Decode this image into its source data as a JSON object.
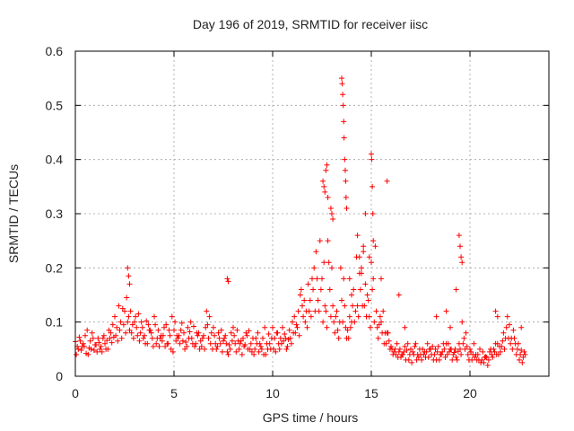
{
  "chart_data": {
    "type": "scatter",
    "title": "Day 196 of 2019, SRMTID for receiver iisc",
    "xlabel": "GPS time / hours",
    "ylabel": "SRMTID / TECUs",
    "xlim": [
      0,
      24
    ],
    "ylim": [
      0,
      0.6
    ],
    "xticks": [
      0,
      5,
      10,
      15,
      20
    ],
    "xtick_labels": [
      "0",
      "5",
      "10",
      "15",
      "20"
    ],
    "yticks": [
      0,
      0.1,
      0.2,
      0.3,
      0.4,
      0.5,
      0.6
    ],
    "ytick_labels": [
      "0",
      "0.1",
      "0.2",
      "0.3",
      "0.4",
      "0.5",
      "0.6"
    ],
    "grid": true,
    "legend": "none",
    "marker": "plus",
    "series": [
      {
        "name": "SRMTID",
        "color": "#ff0000",
        "x": [
          0.0,
          0.2,
          0.4,
          0.6,
          0.8,
          1.0,
          1.2,
          1.4,
          1.6,
          1.8,
          2.0,
          2.2,
          2.4,
          2.6,
          2.8,
          3.0,
          3.2,
          3.4,
          3.6,
          3.8,
          4.0,
          4.2,
          4.4,
          4.6,
          4.8,
          5.0,
          5.2,
          5.4,
          5.6,
          5.8,
          6.0,
          6.2,
          6.4,
          6.6,
          6.8,
          7.0,
          7.2,
          7.4,
          7.6,
          7.8,
          8.0,
          8.2,
          8.4,
          8.6,
          8.8,
          9.0,
          9.2,
          9.4,
          9.6,
          9.8,
          10.0,
          10.2,
          10.4,
          10.6,
          10.8,
          11.0,
          11.2,
          11.4,
          11.6,
          11.8,
          12.0,
          12.2,
          12.4,
          12.6,
          12.8,
          13.0,
          13.2,
          13.4,
          13.6,
          13.8,
          14.0,
          14.2,
          14.4,
          14.6,
          14.8,
          15.0,
          15.2,
          15.4,
          15.6,
          15.8,
          16.0,
          16.2,
          16.4,
          16.6,
          16.8,
          17.0,
          17.2,
          17.4,
          17.6,
          17.8,
          18.0,
          18.2,
          18.4,
          18.6,
          18.8,
          19.0,
          19.2,
          19.4,
          19.6,
          19.8,
          20.0,
          20.2,
          20.4,
          20.6,
          20.8,
          21.0,
          21.2,
          21.4,
          21.6,
          21.8,
          22.0,
          22.2,
          22.4,
          22.6,
          22.8,
          0.1,
          0.3,
          0.5,
          0.7,
          0.9,
          1.1,
          1.3,
          1.5,
          1.7,
          1.9,
          2.1,
          2.3,
          2.5,
          2.7,
          2.9,
          3.1,
          3.3,
          3.5,
          3.7,
          3.9,
          4.1,
          4.3,
          4.5,
          4.7,
          4.9,
          5.1,
          5.3,
          5.5,
          5.7,
          5.9,
          6.1,
          6.3,
          6.5,
          6.7,
          6.9,
          7.1,
          7.3,
          7.5,
          7.7,
          7.9,
          8.1,
          8.3,
          8.5,
          8.7,
          8.9,
          9.1,
          9.3,
          9.5,
          9.7,
          9.9,
          10.1,
          10.3,
          10.5,
          10.7,
          10.9,
          11.1,
          11.3,
          11.5,
          11.7,
          11.9,
          12.1,
          12.3,
          12.5,
          12.7,
          12.9,
          13.1,
          13.3,
          13.5,
          13.7,
          13.9,
          14.1,
          14.3,
          14.5,
          14.7,
          14.9,
          15.1,
          15.3,
          15.5,
          15.7,
          15.9,
          16.1,
          16.3,
          16.5,
          16.7,
          16.9,
          17.1,
          17.3,
          17.5,
          17.7,
          17.9,
          18.1,
          18.3,
          18.5,
          18.7,
          18.9,
          19.1,
          19.3,
          19.5,
          19.7,
          19.9,
          20.1,
          20.3,
          20.5,
          20.7,
          20.9,
          21.1,
          21.3,
          21.5,
          21.7,
          21.9,
          22.1,
          22.3,
          22.5,
          22.7,
          0.05,
          0.25,
          0.45,
          0.65,
          0.85,
          1.05,
          1.25,
          1.45,
          1.65,
          1.85,
          2.05,
          2.25,
          2.45,
          2.65,
          2.85,
          3.05,
          3.25,
          3.45,
          3.65,
          3.85,
          4.05,
          4.25,
          4.45,
          4.65,
          4.85,
          5.05,
          5.25,
          5.45,
          5.65,
          5.85,
          6.05,
          6.25,
          6.45,
          6.65,
          6.85,
          7.05,
          7.25,
          7.45,
          7.65,
          7.85,
          8.05,
          8.25,
          8.45,
          8.65,
          8.85,
          9.05,
          9.25,
          9.45,
          9.65,
          9.85,
          10.05,
          10.25,
          10.45,
          10.65,
          10.85,
          11.05,
          11.25,
          11.45,
          11.65,
          11.85,
          12.05,
          12.25,
          12.45,
          12.65,
          12.85,
          13.05,
          13.25,
          13.45,
          13.65,
          13.85,
          14.05,
          14.25,
          14.45,
          14.65,
          14.85,
          15.05,
          15.25,
          15.45,
          15.65,
          15.85,
          16.05,
          16.25,
          16.45,
          16.65,
          16.85,
          17.05,
          17.25,
          17.45,
          17.65,
          17.85,
          18.05,
          18.25,
          18.45,
          18.65,
          18.85,
          19.05,
          19.25,
          19.45,
          19.65,
          19.85,
          20.05,
          20.25,
          20.45,
          20.65,
          20.85,
          21.05,
          21.25,
          21.45,
          21.65,
          21.85,
          22.05,
          22.25,
          22.45,
          22.65,
          0.15,
          0.35,
          0.55,
          0.75,
          0.95,
          1.15,
          1.35,
          1.55,
          1.75,
          1.95,
          2.15,
          2.35,
          2.55,
          2.75,
          2.95,
          3.15,
          3.35,
          3.55,
          3.75,
          3.95,
          4.15,
          4.35,
          4.55,
          4.75,
          4.95,
          5.15,
          5.35,
          5.55,
          5.75,
          5.95,
          6.15,
          6.35,
          6.55,
          6.75,
          6.95,
          7.15,
          7.35,
          7.55,
          7.75,
          7.95,
          8.15,
          8.35,
          8.55,
          8.75,
          8.95,
          9.15,
          9.35,
          9.55,
          9.75,
          9.95,
          10.15,
          10.35,
          10.55,
          10.75,
          10.95,
          11.15,
          11.35,
          11.55,
          11.75,
          11.95,
          12.15,
          12.35,
          12.55,
          12.75,
          12.95,
          13.15,
          13.35,
          13.55,
          13.75,
          13.95,
          14.15,
          14.35,
          14.55,
          14.75,
          14.95,
          15.15,
          15.35,
          15.55,
          15.75,
          15.95,
          16.15,
          16.35,
          16.55,
          16.75,
          16.95,
          17.15,
          17.35,
          17.55,
          17.75,
          17.95,
          18.15,
          18.35,
          18.55,
          18.75,
          18.95,
          19.15,
          19.35,
          19.55,
          19.75,
          19.95,
          20.15,
          20.35,
          20.55,
          20.75,
          20.95,
          21.15,
          21.35,
          21.55,
          21.75,
          21.95,
          22.15,
          22.35,
          22.55,
          22.75,
          2.65,
          2.7,
          2.75,
          7.7,
          7.75,
          12.55,
          12.6,
          12.65,
          12.7,
          12.75,
          12.8,
          12.95,
          13.0,
          13.05,
          13.5,
          13.52,
          13.55,
          13.58,
          13.6,
          13.62,
          13.65,
          13.68,
          13.7,
          13.72,
          13.75,
          13.9,
          14.0,
          14.3,
          14.4,
          14.5,
          14.6,
          14.7,
          14.9,
          15.0,
          15.02,
          15.05,
          15.08,
          15.1,
          15.5,
          15.8,
          16.4,
          16.7,
          18.3,
          18.8,
          19.0,
          19.3,
          19.45,
          19.5,
          19.55,
          19.6,
          21.3,
          21.4,
          22.6
        ],
        "y": [
          0.064,
          0.072,
          0.06,
          0.085,
          0.05,
          0.058,
          0.062,
          0.07,
          0.066,
          0.08,
          0.11,
          0.13,
          0.125,
          0.145,
          0.12,
          0.1,
          0.115,
          0.09,
          0.102,
          0.085,
          0.11,
          0.085,
          0.065,
          0.095,
          0.075,
          0.085,
          0.07,
          0.098,
          0.063,
          0.082,
          0.092,
          0.075,
          0.055,
          0.09,
          0.11,
          0.09,
          0.055,
          0.085,
          0.075,
          0.058,
          0.09,
          0.085,
          0.065,
          0.058,
          0.084,
          0.07,
          0.06,
          0.055,
          0.09,
          0.078,
          0.09,
          0.08,
          0.07,
          0.078,
          0.068,
          0.1,
          0.095,
          0.15,
          0.14,
          0.17,
          0.18,
          0.23,
          0.25,
          0.21,
          0.25,
          0.2,
          0.11,
          0.1,
          0.18,
          0.085,
          0.15,
          0.12,
          0.19,
          0.23,
          0.15,
          0.21,
          0.24,
          0.095,
          0.12,
          0.08,
          0.055,
          0.05,
          0.045,
          0.04,
          0.048,
          0.05,
          0.055,
          0.035,
          0.05,
          0.045,
          0.05,
          0.04,
          0.055,
          0.045,
          0.06,
          0.05,
          0.044,
          0.046,
          0.1,
          0.08,
          0.05,
          0.06,
          0.04,
          0.03,
          0.036,
          0.045,
          0.05,
          0.06,
          0.055,
          0.07,
          0.095,
          0.085,
          0.05,
          0.048,
          0.04,
          0.055,
          0.048,
          0.075,
          0.052,
          0.07,
          0.045,
          0.055,
          0.06,
          0.085,
          0.095,
          0.09,
          0.1,
          0.12,
          0.11,
          0.095,
          0.09,
          0.08,
          0.075,
          0.095,
          0.07,
          0.06,
          0.07,
          0.09,
          0.06,
          0.11,
          0.065,
          0.06,
          0.08,
          0.09,
          0.07,
          0.06,
          0.05,
          0.075,
          0.095,
          0.08,
          0.06,
          0.07,
          0.065,
          0.045,
          0.08,
          0.06,
          0.05,
          0.07,
          0.075,
          0.06,
          0.05,
          0.045,
          0.07,
          0.06,
          0.05,
          0.07,
          0.06,
          0.09,
          0.05,
          0.07,
          0.11,
          0.12,
          0.13,
          0.12,
          0.14,
          0.2,
          0.14,
          0.18,
          0.12,
          0.16,
          0.1,
          0.085,
          0.14,
          0.09,
          0.11,
          0.16,
          0.13,
          0.2,
          0.17,
          0.11,
          0.18,
          0.09,
          0.1,
          0.08,
          0.065,
          0.04,
          0.06,
          0.035,
          0.055,
          0.03,
          0.045,
          0.03,
          0.04,
          0.045,
          0.035,
          0.055,
          0.03,
          0.04,
          0.05,
          0.06,
          0.03,
          0.035,
          0.05,
          0.07,
          0.04,
          0.03,
          0.04,
          0.05,
          0.025,
          0.02,
          0.04,
          0.06,
          0.055,
          0.08,
          0.11,
          0.07,
          0.06,
          0.03,
          0.035,
          0.04,
          0.065,
          0.055,
          0.04,
          0.08,
          0.058,
          0.05,
          0.075,
          0.05,
          0.062,
          0.075,
          0.085,
          0.095,
          0.1,
          0.08,
          0.11,
          0.065,
          0.07,
          0.06,
          0.08,
          0.095,
          0.055,
          0.075,
          0.06,
          0.05,
          0.1,
          0.075,
          0.065,
          0.055,
          0.1,
          0.055,
          0.08,
          0.07,
          0.12,
          0.06,
          0.075,
          0.08,
          0.045,
          0.06,
          0.05,
          0.075,
          0.065,
          0.04,
          0.08,
          0.05,
          0.04,
          0.08,
          0.05,
          0.04,
          0.06,
          0.05,
          0.08,
          0.06,
          0.07,
          0.085,
          0.08,
          0.09,
          0.16,
          0.1,
          0.12,
          0.16,
          0.18,
          0.16,
          0.13,
          0.21,
          0.13,
          0.12,
          0.2,
          0.13,
          0.07,
          0.13,
          0.22,
          0.16,
          0.13,
          0.14,
          0.16,
          0.12,
          0.11,
          0.06,
          0.08,
          0.05,
          0.04,
          0.05,
          0.045,
          0.06,
          0.025,
          0.06,
          0.05,
          0.04,
          0.06,
          0.04,
          0.05,
          0.03,
          0.06,
          0.04,
          0.05,
          0.05,
          0.06,
          0.06,
          0.055,
          0.045,
          0.035,
          0.03,
          0.045,
          0.035,
          0.05,
          0.045,
          0.04,
          0.065,
          0.09,
          0.06,
          0.07,
          0.06,
          0.025,
          0.05,
          0.055,
          0.042,
          0.065,
          0.048,
          0.07,
          0.045,
          0.05,
          0.07,
          0.072,
          0.065,
          0.07,
          0.08,
          0.085,
          0.07,
          0.075,
          0.1,
          0.06,
          0.085,
          0.055,
          0.07,
          0.075,
          0.055,
          0.085,
          0.045,
          0.075,
          0.085,
          0.05,
          0.07,
          0.06,
          0.08,
          0.065,
          0.05,
          0.07,
          0.05,
          0.05,
          0.06,
          0.07,
          0.04,
          0.065,
          0.045,
          0.06,
          0.055,
          0.05,
          0.045,
          0.07,
          0.06,
          0.04,
          0.05,
          0.07,
          0.045,
          0.05,
          0.065,
          0.055,
          0.06,
          0.08,
          0.075,
          0.11,
          0.09,
          0.11,
          0.12,
          0.12,
          0.1,
          0.09,
          0.11,
          0.08,
          0.07,
          0.1,
          0.07,
          0.09,
          0.1,
          0.11,
          0.13,
          0.11,
          0.09,
          0.1,
          0.07,
          0.08,
          0.06,
          0.05,
          0.045,
          0.035,
          0.04,
          0.03,
          0.04,
          0.04,
          0.04,
          0.03,
          0.035,
          0.05,
          0.03,
          0.045,
          0.04,
          0.035,
          0.045,
          0.04,
          0.03,
          0.04,
          0.05,
          0.03,
          0.04,
          0.03,
          0.025,
          0.035,
          0.03,
          0.035,
          0.04,
          0.045,
          0.05,
          0.07,
          0.05,
          0.04,
          0.04,
          0.045,
          0.2,
          0.185,
          0.17,
          0.18,
          0.175,
          0.36,
          0.35,
          0.34,
          0.38,
          0.39,
          0.33,
          0.31,
          0.3,
          0.29,
          0.55,
          0.54,
          0.52,
          0.5,
          0.47,
          0.44,
          0.4,
          0.38,
          0.36,
          0.33,
          0.31,
          0.18,
          0.1,
          0.26,
          0.22,
          0.19,
          0.24,
          0.3,
          0.22,
          0.41,
          0.4,
          0.35,
          0.3,
          0.25,
          0.18,
          0.36,
          0.15,
          0.09,
          0.11,
          0.12,
          0.09,
          0.16,
          0.26,
          0.24,
          0.22,
          0.21,
          0.12,
          0.11,
          0.09
        ]
      }
    ]
  }
}
